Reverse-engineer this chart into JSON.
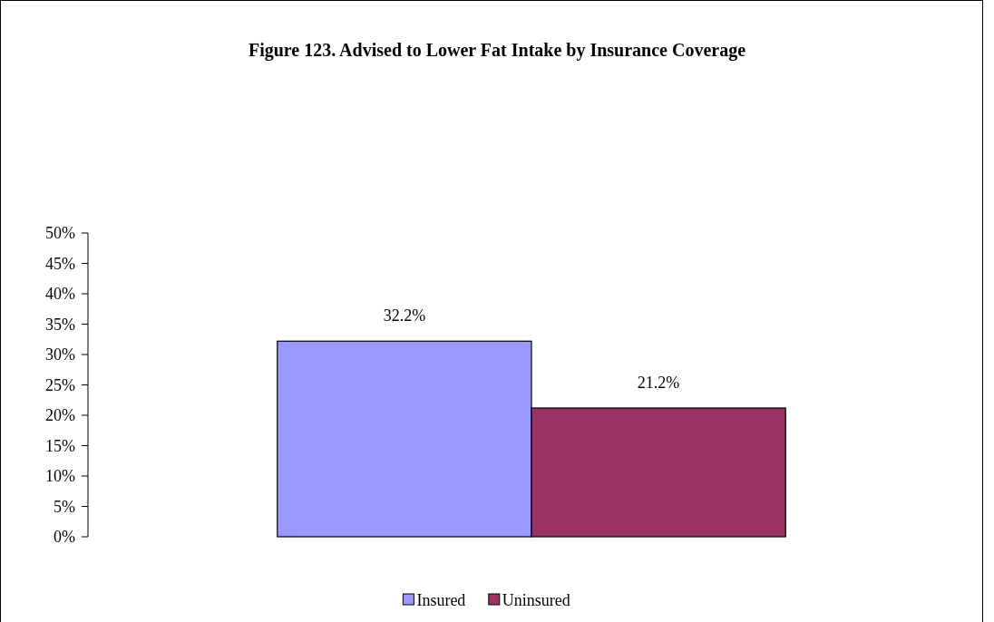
{
  "chart_data": {
    "type": "bar",
    "title": "Figure 123. Advised to Lower Fat Intake by Insurance Coverage",
    "categories": [
      null
    ],
    "series": [
      {
        "name": "Insured",
        "color": "#9999ff",
        "values": [
          32.2
        ],
        "value_labels": [
          "32.2%"
        ]
      },
      {
        "name": "Uninsured",
        "color": "#993366",
        "values": [
          21.2
        ],
        "value_labels": [
          "21.2%"
        ]
      }
    ],
    "ylim": [
      0,
      50
    ],
    "yticks": [
      {
        "value": 0,
        "label": "0%"
      },
      {
        "value": 5,
        "label": "5%"
      },
      {
        "value": 10,
        "label": "10%"
      },
      {
        "value": 15,
        "label": "15%"
      },
      {
        "value": 20,
        "label": "20%"
      },
      {
        "value": 25,
        "label": "25%"
      },
      {
        "value": 30,
        "label": "30%"
      },
      {
        "value": 35,
        "label": "35%"
      },
      {
        "value": 40,
        "label": "40%"
      },
      {
        "value": 45,
        "label": "45%"
      },
      {
        "value": 50,
        "label": "50%"
      }
    ],
    "grid": false,
    "legend": "bottom"
  }
}
